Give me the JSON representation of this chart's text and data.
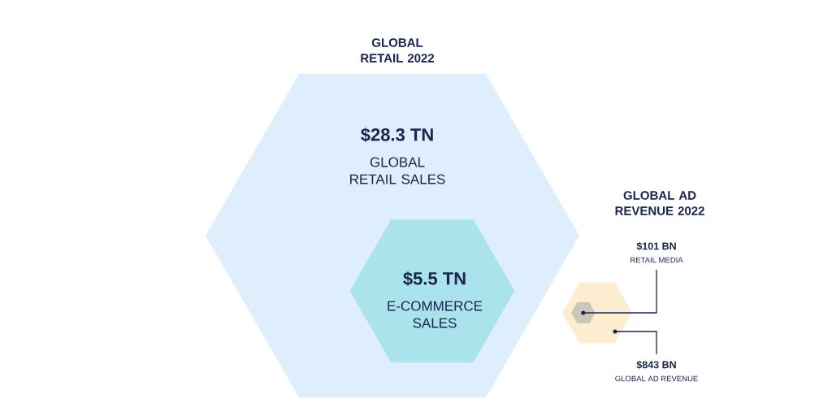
{
  "chart_data": [
    {
      "type": "other",
      "title": "GLOBAL RETAIL 2022",
      "categories": [
        "GLOBAL RETAIL SALES",
        "E-COMMERCE SALES"
      ],
      "values": [
        28.3,
        5.5
      ],
      "value_labels": [
        "$28.3 TN",
        "$5.5 TN"
      ],
      "colors": [
        "#dfeefc",
        "#aae3ec"
      ]
    },
    {
      "type": "other",
      "title": "GLOBAL AD REVENUE 2022",
      "categories": [
        "GLOBAL AD REVENUE",
        "RETAIL MEDIA"
      ],
      "values": [
        843,
        101
      ],
      "value_labels": [
        "$843 BN",
        "$101 BN"
      ],
      "colors": [
        "#fcecd0",
        "#cdc6b6"
      ]
    }
  ]
}
